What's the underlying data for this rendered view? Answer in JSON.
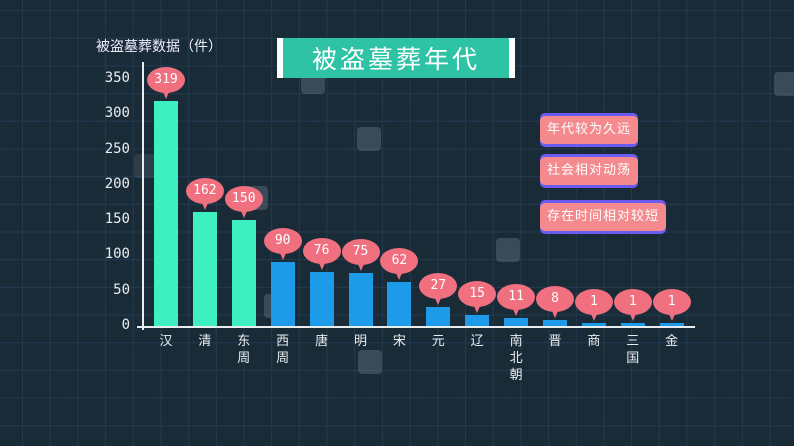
{
  "title": "被盗墓葬年代",
  "y_axis_label": "被盗墓葬数据（件）",
  "notes": [
    "年代较为久远",
    "社会相对动荡",
    "存在时间相对较短"
  ],
  "colors": {
    "background": "#1a2b38",
    "highlight_bar": "#3ef0c0",
    "normal_bar": "#1e9be8",
    "bubble": "#f07080",
    "title_box": "#2fc3a5",
    "note_box": "#f48a8e",
    "note_border": "#6a5cf0"
  },
  "chart_data": {
    "type": "bar",
    "title": "被盗墓葬年代",
    "xlabel": "",
    "ylabel": "被盗墓葬数据（件）",
    "ylim": [
      0,
      350
    ],
    "yticks": [
      0,
      50,
      100,
      150,
      200,
      250,
      300,
      350
    ],
    "grid": true,
    "categories": [
      "汉",
      "清",
      "东周",
      "西周",
      "唐",
      "明",
      "宋",
      "元",
      "辽",
      "南北朝",
      "晋",
      "商",
      "三国",
      "金"
    ],
    "values": [
      319,
      162,
      150,
      90,
      76,
      75,
      62,
      27,
      15,
      11,
      8,
      1,
      1,
      1
    ],
    "highlighted": [
      "汉",
      "清",
      "东周"
    ],
    "annotations": [
      "年代较为久远",
      "社会相对动荡",
      "存在时间相对较短"
    ]
  }
}
